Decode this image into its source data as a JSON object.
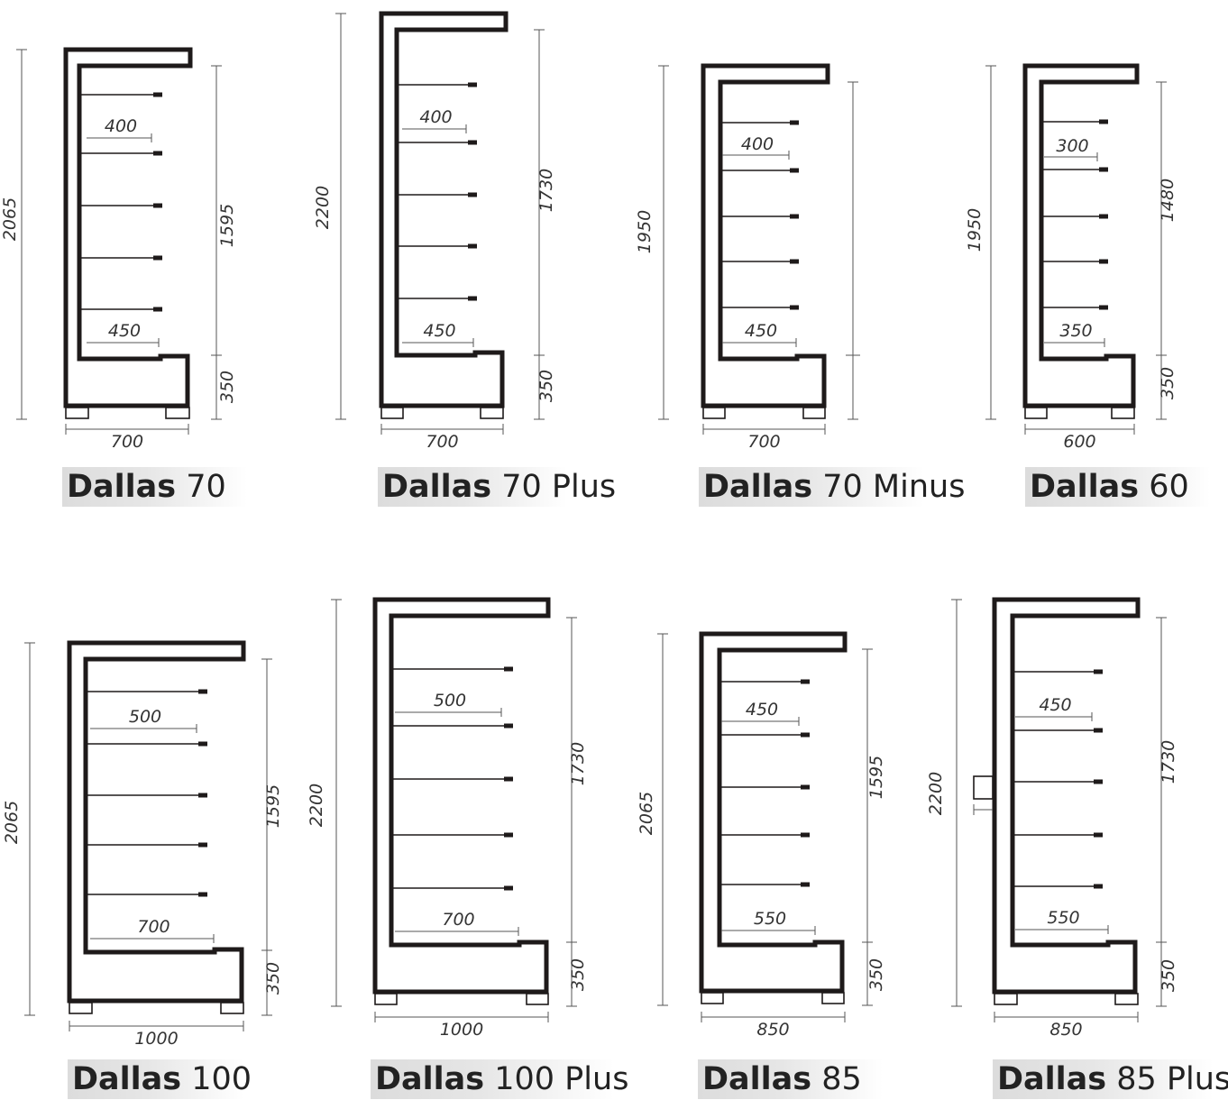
{
  "units": [
    {
      "brand": "Dallas",
      "model": "70",
      "height": "2065",
      "upper": "1595",
      "base": "350",
      "width": "700",
      "top_shelf": "400",
      "bottom_shelf": "450"
    },
    {
      "brand": "Dallas",
      "model": "70 Plus",
      "height": "2200",
      "upper": "1730",
      "base": "350",
      "width": "700",
      "top_shelf": "400",
      "bottom_shelf": "450"
    },
    {
      "brand": "Dallas",
      "model": "70 Minus",
      "height": "1950",
      "upper": "",
      "base": "",
      "width": "700",
      "top_shelf": "400",
      "bottom_shelf": "450"
    },
    {
      "brand": "Dallas",
      "model": "60",
      "height": "1950",
      "upper": "1480",
      "base": "350",
      "width": "600",
      "top_shelf": "300",
      "bottom_shelf": "350"
    },
    {
      "brand": "Dallas",
      "model": "100",
      "height": "2065",
      "upper": "1595",
      "base": "350",
      "width": "1000",
      "top_shelf": "500",
      "bottom_shelf": "700"
    },
    {
      "brand": "Dallas",
      "model": "100 Plus",
      "height": "2200",
      "upper": "1730",
      "base": "350",
      "width": "1000",
      "top_shelf": "500",
      "bottom_shelf": "700"
    },
    {
      "brand": "Dallas",
      "model": "85",
      "height": "2065",
      "upper": "1595",
      "base": "350",
      "width": "850",
      "top_shelf": "450",
      "bottom_shelf": "550"
    },
    {
      "brand": "Dallas",
      "model": "85 Plus",
      "height": "2200",
      "upper": "1730",
      "base": "350",
      "width": "850",
      "top_shelf": "450",
      "bottom_shelf": "550"
    }
  ]
}
